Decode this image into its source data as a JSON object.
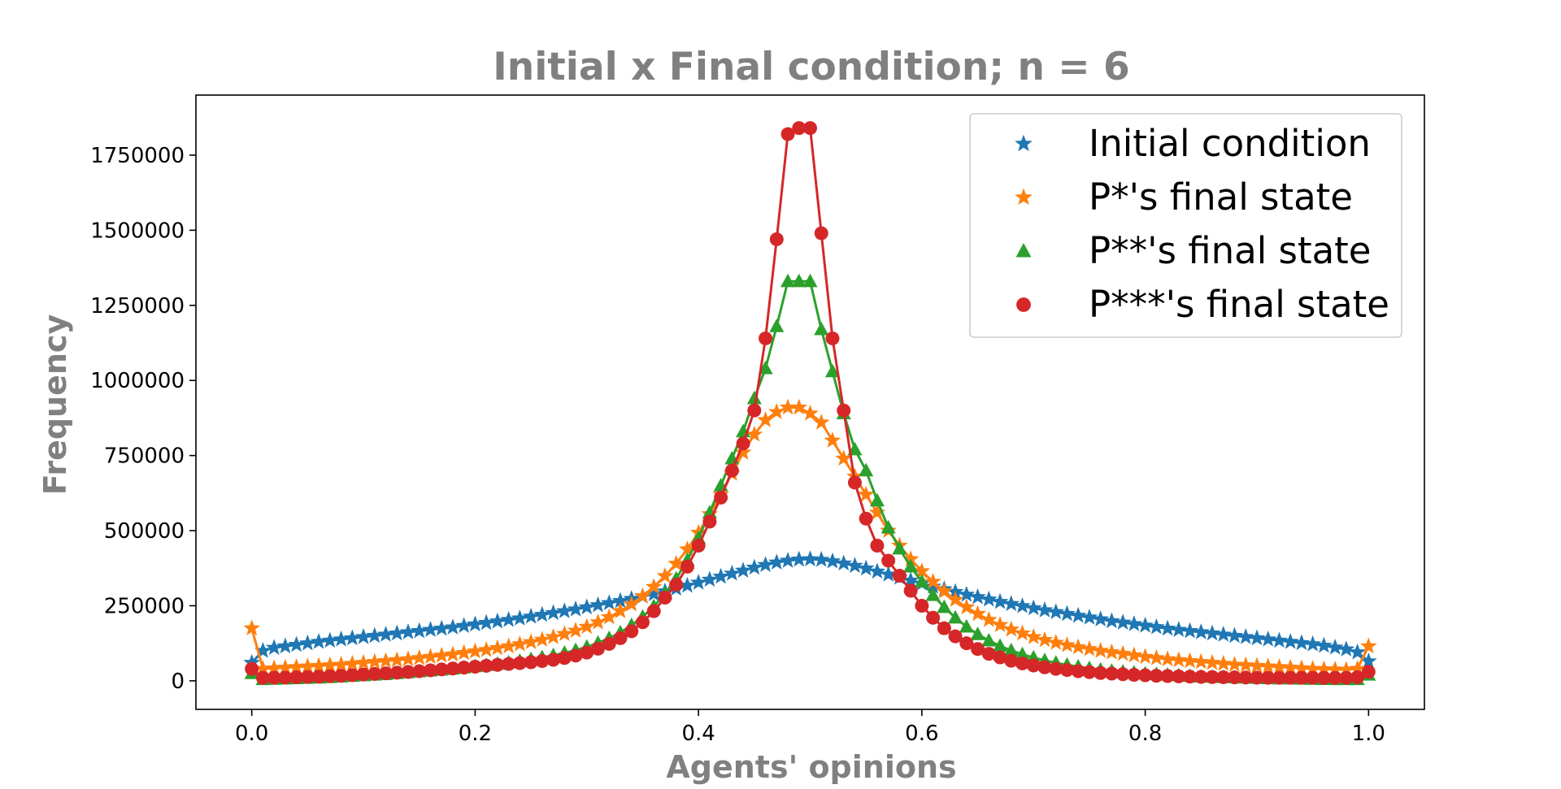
{
  "chart_data": {
    "type": "line",
    "title": "Initial x Final condition; n = 6",
    "xlabel": "Agents' opinions",
    "ylabel": "Frequency",
    "xlim": [
      -0.05,
      1.05
    ],
    "ylim": [
      -95000,
      1950000
    ],
    "xticks": [
      0.0,
      0.2,
      0.4,
      0.6,
      0.8,
      1.0
    ],
    "xtick_labels": [
      "0.0",
      "0.2",
      "0.4",
      "0.6",
      "0.8",
      "1.0"
    ],
    "yticks": [
      0,
      250000,
      500000,
      750000,
      1000000,
      1250000,
      1500000,
      1750000
    ],
    "ytick_labels": [
      "0",
      "250000",
      "500000",
      "750000",
      "1000000",
      "1250000",
      "1500000",
      "1750000"
    ],
    "grid": false,
    "legend_position": "top-right",
    "series": [
      {
        "name": "Initial condition",
        "color": "#1f77b4",
        "marker": "star",
        "x": [
          0.0,
          0.01,
          0.02,
          0.03,
          0.04,
          0.05,
          0.06,
          0.07,
          0.08,
          0.09,
          0.1,
          0.11,
          0.12,
          0.13,
          0.14,
          0.15,
          0.16,
          0.17,
          0.18,
          0.19,
          0.2,
          0.21,
          0.22,
          0.23,
          0.24,
          0.25,
          0.26,
          0.27,
          0.28,
          0.29,
          0.3,
          0.31,
          0.32,
          0.33,
          0.34,
          0.35,
          0.36,
          0.37,
          0.38,
          0.39,
          0.4,
          0.41,
          0.42,
          0.43,
          0.44,
          0.45,
          0.46,
          0.47,
          0.48,
          0.49,
          0.5,
          0.51,
          0.52,
          0.53,
          0.54,
          0.55,
          0.56,
          0.57,
          0.58,
          0.59,
          0.6,
          0.61,
          0.62,
          0.63,
          0.64,
          0.65,
          0.66,
          0.67,
          0.68,
          0.69,
          0.7,
          0.71,
          0.72,
          0.73,
          0.74,
          0.75,
          0.76,
          0.77,
          0.78,
          0.79,
          0.8,
          0.81,
          0.82,
          0.83,
          0.84,
          0.85,
          0.86,
          0.87,
          0.88,
          0.89,
          0.9,
          0.91,
          0.92,
          0.93,
          0.94,
          0.95,
          0.96,
          0.97,
          0.98,
          0.99,
          1.0
        ],
        "y": [
          60000,
          100000,
          110000,
          115000,
          120000,
          125000,
          130000,
          134000,
          138000,
          142000,
          146000,
          150000,
          154000,
          158000,
          162000,
          166000,
          170000,
          174000,
          178000,
          183000,
          188000,
          193000,
          198000,
          203000,
          208000,
          214000,
          220000,
          226000,
          232000,
          238000,
          245000,
          252000,
          259000,
          266000,
          273000,
          281000,
          289000,
          298000,
          307000,
          317000,
          327000,
          337000,
          347000,
          357000,
          367000,
          377000,
          386000,
          394000,
          400000,
          404000,
          405000,
          403000,
          398000,
          391000,
          383000,
          374000,
          364000,
          354000,
          344000,
          334000,
          324000,
          314000,
          305000,
          296000,
          287000,
          279000,
          271000,
          263000,
          256000,
          249000,
          242000,
          235000,
          229000,
          223000,
          217000,
          211000,
          205000,
          199000,
          194000,
          189000,
          184000,
          179000,
          174000,
          170000,
          166000,
          162000,
          158000,
          154000,
          150000,
          146000,
          142000,
          138000,
          134000,
          130000,
          126000,
          122000,
          117000,
          111000,
          105000,
          95000,
          65000
        ]
      },
      {
        "name": "P*'s final state",
        "color": "#ff7f0e",
        "marker": "star",
        "x": [
          0.0,
          0.01,
          0.02,
          0.03,
          0.04,
          0.05,
          0.06,
          0.07,
          0.08,
          0.09,
          0.1,
          0.11,
          0.12,
          0.13,
          0.14,
          0.15,
          0.16,
          0.17,
          0.18,
          0.19,
          0.2,
          0.21,
          0.22,
          0.23,
          0.24,
          0.25,
          0.26,
          0.27,
          0.28,
          0.29,
          0.3,
          0.31,
          0.32,
          0.33,
          0.34,
          0.35,
          0.36,
          0.37,
          0.38,
          0.39,
          0.4,
          0.41,
          0.42,
          0.43,
          0.44,
          0.45,
          0.46,
          0.47,
          0.48,
          0.49,
          0.5,
          0.51,
          0.52,
          0.53,
          0.54,
          0.55,
          0.56,
          0.57,
          0.58,
          0.59,
          0.6,
          0.61,
          0.62,
          0.63,
          0.64,
          0.65,
          0.66,
          0.67,
          0.68,
          0.69,
          0.7,
          0.71,
          0.72,
          0.73,
          0.74,
          0.75,
          0.76,
          0.77,
          0.78,
          0.79,
          0.8,
          0.81,
          0.82,
          0.83,
          0.84,
          0.85,
          0.86,
          0.87,
          0.88,
          0.89,
          0.9,
          0.91,
          0.92,
          0.93,
          0.94,
          0.95,
          0.96,
          0.97,
          0.98,
          0.99,
          1.0
        ],
        "y": [
          175000,
          40000,
          42000,
          44000,
          46000,
          48000,
          50000,
          52000,
          54000,
          57000,
          60000,
          63000,
          66000,
          69000,
          72000,
          76000,
          80000,
          84000,
          88000,
          93000,
          98000,
          103000,
          109000,
          115000,
          122000,
          129000,
          137000,
          146000,
          156000,
          167000,
          180000,
          195000,
          212000,
          232000,
          255000,
          282000,
          313000,
          349000,
          390000,
          438000,
          493000,
          555000,
          620000,
          690000,
          760000,
          820000,
          868000,
          895000,
          910000,
          910000,
          890000,
          860000,
          800000,
          740000,
          680000,
          620000,
          560000,
          500000,
          450000,
          405000,
          365000,
          330000,
          298000,
          270000,
          245000,
          223000,
          203000,
          186000,
          171000,
          158000,
          146000,
          136000,
          127000,
          119000,
          112000,
          106000,
          100000,
          95000,
          90000,
          85000,
          80000,
          76000,
          72000,
          69000,
          66000,
          63000,
          60000,
          57000,
          54000,
          52000,
          50000,
          48000,
          46000,
          44000,
          42000,
          40000,
          39000,
          38000,
          37000,
          40000,
          115000
        ]
      },
      {
        "name": "P**'s final state",
        "color": "#2ca02c",
        "marker": "triangle",
        "x": [
          0.0,
          0.01,
          0.02,
          0.03,
          0.04,
          0.05,
          0.06,
          0.07,
          0.08,
          0.09,
          0.1,
          0.11,
          0.12,
          0.13,
          0.14,
          0.15,
          0.16,
          0.17,
          0.18,
          0.19,
          0.2,
          0.21,
          0.22,
          0.23,
          0.24,
          0.25,
          0.26,
          0.27,
          0.28,
          0.29,
          0.3,
          0.31,
          0.32,
          0.33,
          0.34,
          0.35,
          0.36,
          0.37,
          0.38,
          0.39,
          0.4,
          0.41,
          0.42,
          0.43,
          0.44,
          0.45,
          0.46,
          0.47,
          0.48,
          0.49,
          0.5,
          0.51,
          0.52,
          0.53,
          0.54,
          0.55,
          0.56,
          0.57,
          0.58,
          0.59,
          0.6,
          0.61,
          0.62,
          0.63,
          0.64,
          0.65,
          0.66,
          0.67,
          0.68,
          0.69,
          0.7,
          0.71,
          0.72,
          0.73,
          0.74,
          0.75,
          0.76,
          0.77,
          0.78,
          0.79,
          0.8,
          0.81,
          0.82,
          0.83,
          0.84,
          0.85,
          0.86,
          0.87,
          0.88,
          0.89,
          0.9,
          0.91,
          0.92,
          0.93,
          0.94,
          0.95,
          0.96,
          0.97,
          0.98,
          0.99,
          1.0
        ],
        "y": [
          25000,
          5000,
          6000,
          7000,
          8000,
          9000,
          10000,
          12000,
          14000,
          16000,
          18000,
          20000,
          22000,
          25000,
          28000,
          31000,
          34000,
          37000,
          40000,
          44000,
          48000,
          52000,
          56000,
          61000,
          66000,
          72000,
          78000,
          85000,
          93000,
          102000,
          113000,
          126000,
          142000,
          161000,
          185000,
          213000,
          248000,
          290000,
          340000,
          402000,
          475000,
          560000,
          650000,
          740000,
          830000,
          940000,
          1040000,
          1180000,
          1330000,
          1330000,
          1330000,
          1170000,
          1030000,
          890000,
          770000,
          700000,
          600000,
          510000,
          440000,
          380000,
          330000,
          285000,
          245000,
          210000,
          180000,
          155000,
          134000,
          116000,
          101000,
          88000,
          77000,
          68000,
          60000,
          53000,
          47000,
          42000,
          37000,
          33000,
          30000,
          27000,
          24000,
          22000,
          20000,
          18000,
          16000,
          14000,
          13000,
          12000,
          11000,
          10000,
          9000,
          8000,
          7500,
          7000,
          6500,
          6000,
          5500,
          5000,
          5000,
          5000,
          20000
        ]
      },
      {
        "name": "P***'s final state",
        "color": "#d62728",
        "marker": "circle",
        "x": [
          0.0,
          0.01,
          0.02,
          0.03,
          0.04,
          0.05,
          0.06,
          0.07,
          0.08,
          0.09,
          0.1,
          0.11,
          0.12,
          0.13,
          0.14,
          0.15,
          0.16,
          0.17,
          0.18,
          0.19,
          0.2,
          0.21,
          0.22,
          0.23,
          0.24,
          0.25,
          0.26,
          0.27,
          0.28,
          0.29,
          0.3,
          0.31,
          0.32,
          0.33,
          0.34,
          0.35,
          0.36,
          0.37,
          0.38,
          0.39,
          0.4,
          0.41,
          0.42,
          0.43,
          0.44,
          0.45,
          0.46,
          0.47,
          0.48,
          0.49,
          0.5,
          0.51,
          0.52,
          0.53,
          0.54,
          0.55,
          0.56,
          0.57,
          0.58,
          0.59,
          0.6,
          0.61,
          0.62,
          0.63,
          0.64,
          0.65,
          0.66,
          0.67,
          0.68,
          0.69,
          0.7,
          0.71,
          0.72,
          0.73,
          0.74,
          0.75,
          0.76,
          0.77,
          0.78,
          0.79,
          0.8,
          0.81,
          0.82,
          0.83,
          0.84,
          0.85,
          0.86,
          0.87,
          0.88,
          0.89,
          0.9,
          0.91,
          0.92,
          0.93,
          0.94,
          0.95,
          0.96,
          0.97,
          0.98,
          0.99,
          1.0
        ],
        "y": [
          40000,
          10000,
          10500,
          11000,
          12000,
          13000,
          14000,
          15500,
          17000,
          19000,
          21000,
          23000,
          25000,
          27000,
          29500,
          32000,
          35000,
          38000,
          41000,
          44000,
          47000,
          50000,
          53000,
          56000,
          59000,
          62000,
          66000,
          70000,
          76000,
          84000,
          94000,
          107000,
          123000,
          142000,
          165000,
          195000,
          232000,
          277000,
          320000,
          380000,
          450000,
          530000,
          610000,
          700000,
          790000,
          900000,
          1140000,
          1470000,
          1820000,
          1840000,
          1840000,
          1490000,
          1140000,
          900000,
          660000,
          540000,
          450000,
          400000,
          350000,
          300000,
          250000,
          210000,
          175000,
          148000,
          125000,
          106000,
          90000,
          78000,
          67000,
          58000,
          51000,
          45000,
          40000,
          36000,
          32000,
          29000,
          26000,
          24000,
          22000,
          20000,
          18500,
          17000,
          16000,
          15000,
          14000,
          13000,
          12500,
          12000,
          11500,
          11000,
          10500,
          10000,
          10000,
          10000,
          10000,
          10000,
          10000,
          10000,
          10000,
          12000,
          30000
        ]
      }
    ]
  }
}
